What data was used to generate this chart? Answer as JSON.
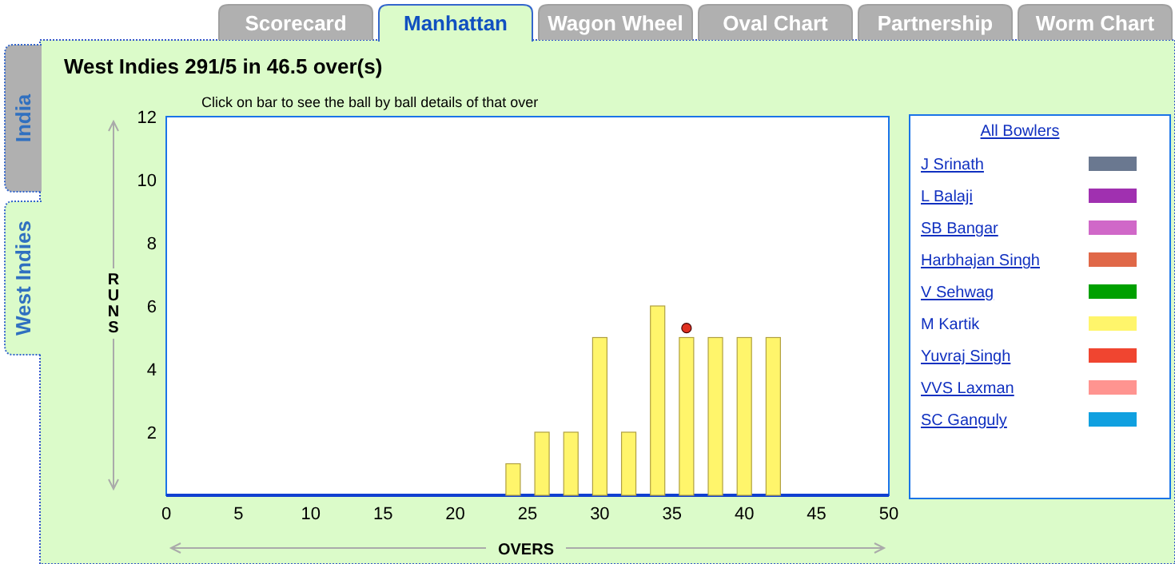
{
  "chart_data": {
    "type": "bar",
    "title": "West Indies 291/5 in 46.5 over(s)",
    "subtitle": "Click on bar to see the ball by ball details of that over",
    "xlabel": "OVERS",
    "ylabel": "RUNS",
    "legend_title": "All Bowlers",
    "annotations": [
      "Scorecard",
      "Manhattan",
      "Wagon Wheel",
      "Oval Chart",
      "Partnership",
      "Worm Chart",
      "India",
      "West Indies",
      "J Srinath",
      "L Balaji",
      "SB Bangar",
      "Harbhajan Singh",
      "V Sehwag",
      "Yuvraj Singh",
      "VVS Laxman",
      "SC Ganguly"
    ],
    "x": [
      24,
      26,
      28,
      30,
      32,
      34,
      36,
      38,
      40,
      42
    ],
    "series": [
      {
        "name": "M Kartik",
        "color": "#fff56b",
        "values": [
          1,
          2,
          2,
          5,
          2,
          6,
          5,
          5,
          5,
          5
        ]
      },
      {
        "type": "scatter",
        "color": "#e03020",
        "x": [
          36
        ],
        "values": [
          5.3
        ],
        "marker": "circle"
      }
    ],
    "xlim": [
      0,
      50
    ],
    "xticks": [
      0,
      5,
      10,
      15,
      20,
      25,
      30,
      35,
      40,
      45,
      50
    ],
    "ylim": [
      0,
      12
    ],
    "yticks": [
      2,
      4,
      6,
      8,
      10,
      12
    ],
    "grid": false,
    "legend": "right"
  }
}
